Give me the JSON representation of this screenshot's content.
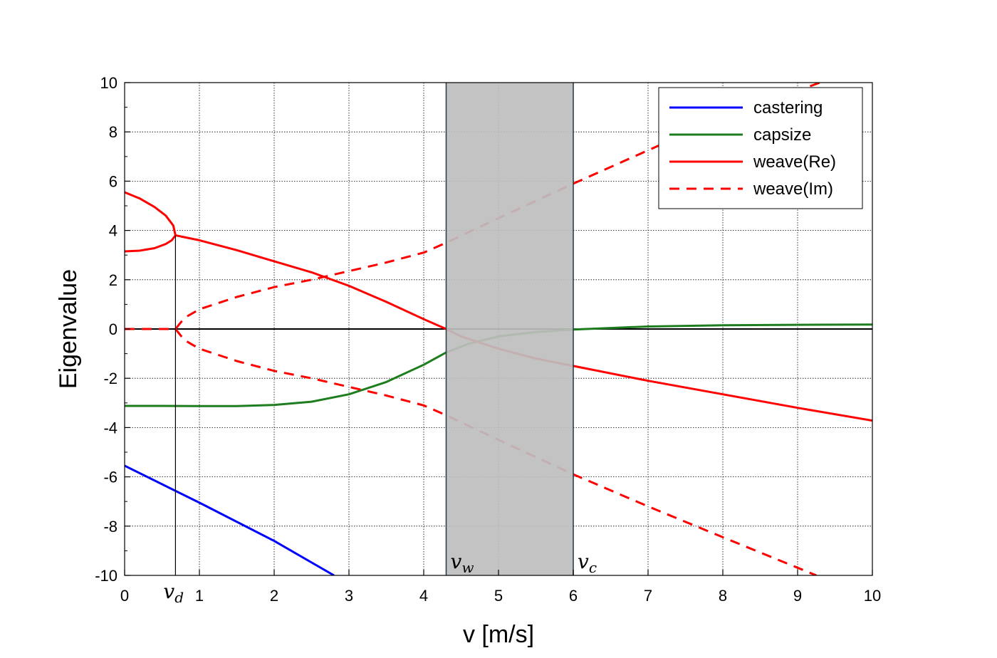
{
  "chart_data": {
    "type": "line",
    "title": "",
    "xlabel": "v [m/s]",
    "ylabel": "Eigenvalue",
    "xlim": [
      0,
      10
    ],
    "ylim": [
      -10,
      10
    ],
    "xticks": [
      0,
      1,
      2,
      3,
      4,
      5,
      6,
      7,
      8,
      9,
      10
    ],
    "yticks": [
      -10,
      -8,
      -6,
      -4,
      -2,
      0,
      2,
      4,
      6,
      8,
      10
    ],
    "grid": true,
    "legend_position": "top-right",
    "shaded_region": {
      "x_start": 4.3,
      "x_end": 6.0,
      "color": "#bebebe"
    },
    "vertical_markers": [
      {
        "x": 0.68,
        "label": "v",
        "subscript": "d"
      },
      {
        "x": 4.3,
        "label": "v",
        "subscript": "w"
      },
      {
        "x": 6.0,
        "label": "v",
        "subscript": "c"
      }
    ],
    "series": [
      {
        "name": "castering",
        "color": "#0000ff",
        "style": "solid",
        "points": [
          [
            0,
            -5.55
          ],
          [
            1,
            -7.05
          ],
          [
            2,
            -8.6
          ],
          [
            2.8,
            -10
          ]
        ]
      },
      {
        "name": "capsize",
        "color": "#1e7d1e",
        "style": "solid",
        "points": [
          [
            0,
            -3.12
          ],
          [
            0.5,
            -3.12
          ],
          [
            1,
            -3.13
          ],
          [
            1.5,
            -3.13
          ],
          [
            2,
            -3.08
          ],
          [
            2.5,
            -2.95
          ],
          [
            3,
            -2.65
          ],
          [
            3.5,
            -2.15
          ],
          [
            4,
            -1.45
          ],
          [
            4.3,
            -0.95
          ],
          [
            4.6,
            -0.6
          ],
          [
            5,
            -0.3
          ],
          [
            5.5,
            -0.12
          ],
          [
            6,
            -0.02
          ],
          [
            7,
            0.1
          ],
          [
            8,
            0.15
          ],
          [
            9,
            0.17
          ],
          [
            10,
            0.18
          ]
        ]
      },
      {
        "name": "weave(Re)",
        "color": "#ff0000",
        "style": "solid",
        "points": [
          [
            0,
            5.55
          ],
          [
            0.2,
            5.3
          ],
          [
            0.4,
            4.95
          ],
          [
            0.55,
            4.6
          ],
          [
            0.65,
            4.2
          ],
          [
            0.68,
            3.8
          ],
          [
            1,
            3.6
          ],
          [
            1.5,
            3.2
          ],
          [
            2,
            2.75
          ],
          [
            2.5,
            2.3
          ],
          [
            3,
            1.75
          ],
          [
            3.5,
            1.1
          ],
          [
            4,
            0.4
          ],
          [
            4.3,
            0.0
          ],
          [
            4.5,
            -0.3
          ],
          [
            5,
            -0.8
          ],
          [
            5.5,
            -1.2
          ],
          [
            6,
            -1.5
          ],
          [
            7,
            -2.1
          ],
          [
            8,
            -2.65
          ],
          [
            9,
            -3.2
          ],
          [
            10,
            -3.72
          ]
        ]
      },
      {
        "name": "",
        "color": "#ff0000",
        "style": "solid",
        "points": [
          [
            0,
            3.15
          ],
          [
            0.2,
            3.18
          ],
          [
            0.4,
            3.28
          ],
          [
            0.55,
            3.45
          ],
          [
            0.63,
            3.6
          ],
          [
            0.68,
            3.8
          ]
        ]
      },
      {
        "name": "weave(Im)",
        "color": "#ff0000",
        "style": "dashed",
        "points": [
          [
            0,
            0
          ],
          [
            0.68,
            0
          ],
          [
            0.8,
            0.45
          ],
          [
            1,
            0.8
          ],
          [
            1.5,
            1.3
          ],
          [
            2,
            1.7
          ],
          [
            2.5,
            2.0
          ],
          [
            3,
            2.35
          ],
          [
            3.5,
            2.7
          ],
          [
            4,
            3.1
          ],
          [
            4.3,
            3.5
          ],
          [
            5,
            4.5
          ],
          [
            5.5,
            5.2
          ],
          [
            6,
            5.9
          ],
          [
            7,
            7.25
          ],
          [
            8,
            8.6
          ],
          [
            9.3,
            10
          ]
        ]
      },
      {
        "name": "",
        "color": "#ff0000",
        "style": "dashed",
        "points": [
          [
            0.68,
            0
          ],
          [
            0.8,
            -0.45
          ],
          [
            1,
            -0.8
          ],
          [
            1.5,
            -1.3
          ],
          [
            2,
            -1.7
          ],
          [
            2.5,
            -2.0
          ],
          [
            3,
            -2.35
          ],
          [
            3.5,
            -2.7
          ],
          [
            4,
            -3.1
          ],
          [
            4.3,
            -3.5
          ],
          [
            5,
            -4.5
          ],
          [
            5.5,
            -5.2
          ],
          [
            6,
            -5.9
          ],
          [
            7,
            -7.2
          ],
          [
            8,
            -8.45
          ],
          [
            9.25,
            -10
          ]
        ]
      }
    ]
  }
}
